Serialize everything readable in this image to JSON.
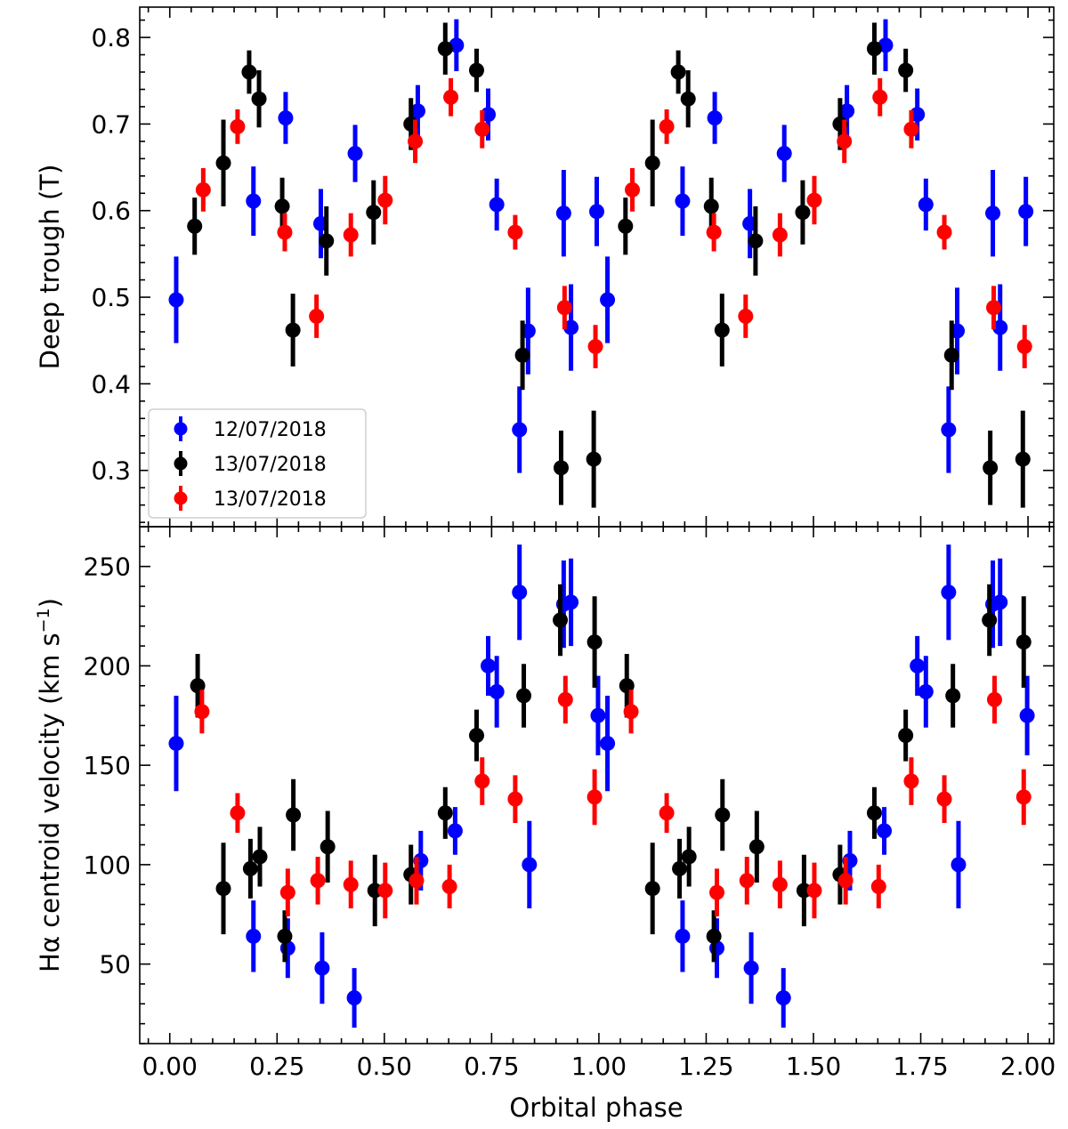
{
  "chart_data": {
    "type": "scatter",
    "shared_x": {
      "xlabel": "Orbital phase",
      "xlim": [
        -0.07,
        2.06
      ],
      "xticks": [
        "0.00",
        "0.25",
        "0.50",
        "0.75",
        "1.00",
        "1.25",
        "1.50",
        "1.75",
        "2.00"
      ]
    },
    "legend": {
      "placement": "lower-left",
      "panel": "top"
    },
    "series_styles": [
      {
        "name": "12/07/2018",
        "color": "#0000ff"
      },
      {
        "name": "13/07/2018",
        "color": "#000000"
      },
      {
        "name": "13/07/2018",
        "color": "#ff0000"
      }
    ],
    "panels": [
      {
        "ylabel": "Deep trough (T)",
        "ylim": [
          0.235,
          0.835
        ],
        "yticks": [
          "0.3",
          "0.4",
          "0.5",
          "0.6",
          "0.7",
          "0.8"
        ],
        "series": [
          {
            "points": [
              [
                0.015,
                0.497,
                0.05
              ],
              [
                0.195,
                0.611,
                0.04
              ],
              [
                0.27,
                0.707,
                0.03
              ],
              [
                0.352,
                0.585,
                0.04
              ],
              [
                0.432,
                0.666,
                0.033
              ],
              [
                0.578,
                0.715,
                0.03
              ],
              [
                0.668,
                0.791,
                0.03
              ],
              [
                0.742,
                0.711,
                0.03
              ],
              [
                0.762,
                0.607,
                0.03
              ],
              [
                0.815,
                0.347,
                0.05
              ],
              [
                0.835,
                0.461,
                0.05
              ],
              [
                0.918,
                0.597,
                0.05
              ],
              [
                0.935,
                0.465,
                0.05
              ],
              [
                0.995,
                0.599,
                0.04
              ],
              [
                1.02,
                0.497,
                0.05
              ],
              [
                1.195,
                0.611,
                0.04
              ],
              [
                1.27,
                0.707,
                0.03
              ],
              [
                1.352,
                0.585,
                0.04
              ],
              [
                1.432,
                0.666,
                0.033
              ],
              [
                1.578,
                0.715,
                0.03
              ],
              [
                1.668,
                0.791,
                0.03
              ],
              [
                1.742,
                0.711,
                0.03
              ],
              [
                1.762,
                0.607,
                0.03
              ],
              [
                1.815,
                0.347,
                0.05
              ],
              [
                1.835,
                0.461,
                0.05
              ],
              [
                1.918,
                0.597,
                0.05
              ],
              [
                1.935,
                0.465,
                0.05
              ],
              [
                1.995,
                0.599,
                0.04
              ]
            ]
          },
          {
            "points": [
              [
                0.058,
                0.582,
                0.033
              ],
              [
                0.125,
                0.655,
                0.05
              ],
              [
                0.185,
                0.76,
                0.025
              ],
              [
                0.208,
                0.729,
                0.033
              ],
              [
                0.262,
                0.605,
                0.033
              ],
              [
                0.287,
                0.462,
                0.042
              ],
              [
                0.365,
                0.565,
                0.04
              ],
              [
                0.475,
                0.598,
                0.037
              ],
              [
                0.562,
                0.7,
                0.03
              ],
              [
                0.642,
                0.787,
                0.03
              ],
              [
                0.715,
                0.762,
                0.025
              ],
              [
                0.822,
                0.433,
                0.04
              ],
              [
                0.912,
                0.303,
                0.043
              ],
              [
                0.988,
                0.313,
                0.056
              ],
              [
                1.062,
                0.582,
                0.033
              ],
              [
                1.125,
                0.655,
                0.05
              ],
              [
                1.185,
                0.76,
                0.025
              ],
              [
                1.208,
                0.729,
                0.033
              ],
              [
                1.262,
                0.605,
                0.033
              ],
              [
                1.287,
                0.462,
                0.042
              ],
              [
                1.365,
                0.565,
                0.04
              ],
              [
                1.475,
                0.598,
                0.037
              ],
              [
                1.562,
                0.7,
                0.03
              ],
              [
                1.642,
                0.787,
                0.03
              ],
              [
                1.715,
                0.762,
                0.025
              ],
              [
                1.822,
                0.433,
                0.04
              ],
              [
                1.912,
                0.303,
                0.043
              ],
              [
                1.988,
                0.313,
                0.056
              ]
            ]
          },
          {
            "points": [
              [
                0.078,
                0.624,
                0.025
              ],
              [
                0.158,
                0.697,
                0.02
              ],
              [
                0.268,
                0.575,
                0.022
              ],
              [
                0.342,
                0.478,
                0.025
              ],
              [
                0.422,
                0.572,
                0.025
              ],
              [
                0.502,
                0.612,
                0.028
              ],
              [
                0.572,
                0.68,
                0.025
              ],
              [
                0.655,
                0.731,
                0.022
              ],
              [
                0.728,
                0.694,
                0.022
              ],
              [
                0.805,
                0.575,
                0.02
              ],
              [
                0.92,
                0.488,
                0.025
              ],
              [
                0.992,
                0.443,
                0.025
              ],
              [
                1.078,
                0.624,
                0.025
              ],
              [
                1.158,
                0.697,
                0.02
              ],
              [
                1.268,
                0.575,
                0.022
              ],
              [
                1.342,
                0.478,
                0.025
              ],
              [
                1.422,
                0.572,
                0.025
              ],
              [
                1.502,
                0.612,
                0.028
              ],
              [
                1.572,
                0.68,
                0.025
              ],
              [
                1.655,
                0.731,
                0.022
              ],
              [
                1.728,
                0.694,
                0.022
              ],
              [
                1.805,
                0.575,
                0.02
              ],
              [
                1.92,
                0.488,
                0.025
              ],
              [
                1.992,
                0.443,
                0.025
              ]
            ]
          }
        ]
      },
      {
        "ylabel": "Hα centroid velocity (km s",
        "ylabel_sup": "−1",
        "ylabel_end": ")",
        "ylim": [
          10,
          270
        ],
        "yticks": [
          "50",
          "100",
          "150",
          "200",
          "250"
        ],
        "series": [
          {
            "points": [
              [
                0.015,
                161,
                24
              ],
              [
                0.195,
                64,
                18
              ],
              [
                0.275,
                58,
                15
              ],
              [
                0.355,
                48,
                18
              ],
              [
                0.43,
                33,
                15
              ],
              [
                0.585,
                102,
                15
              ],
              [
                0.665,
                117,
                12
              ],
              [
                0.742,
                200,
                15
              ],
              [
                0.762,
                187,
                18
              ],
              [
                0.815,
                237,
                24
              ],
              [
                0.838,
                100,
                22
              ],
              [
                0.918,
                231,
                22
              ],
              [
                0.935,
                232,
                22
              ],
              [
                0.998,
                175,
                20
              ],
              [
                1.02,
                161,
                24
              ],
              [
                1.195,
                64,
                18
              ],
              [
                1.275,
                58,
                15
              ],
              [
                1.355,
                48,
                18
              ],
              [
                1.43,
                33,
                15
              ],
              [
                1.585,
                102,
                15
              ],
              [
                1.665,
                117,
                12
              ],
              [
                1.742,
                200,
                15
              ],
              [
                1.762,
                187,
                18
              ],
              [
                1.815,
                237,
                24
              ],
              [
                1.838,
                100,
                22
              ],
              [
                1.918,
                231,
                22
              ],
              [
                1.935,
                232,
                22
              ],
              [
                1.998,
                175,
                20
              ]
            ]
          },
          {
            "points": [
              [
                0.065,
                190,
                16
              ],
              [
                0.125,
                88,
                23
              ],
              [
                0.188,
                98,
                15
              ],
              [
                0.21,
                104,
                15
              ],
              [
                0.268,
                64,
                13
              ],
              [
                0.288,
                125,
                18
              ],
              [
                0.368,
                109,
                18
              ],
              [
                0.478,
                87,
                18
              ],
              [
                0.562,
                95,
                15
              ],
              [
                0.642,
                126,
                13
              ],
              [
                0.715,
                165,
                13
              ],
              [
                0.825,
                185,
                16
              ],
              [
                0.91,
                223,
                18
              ],
              [
                0.99,
                212,
                23
              ],
              [
                1.065,
                190,
                16
              ],
              [
                1.125,
                88,
                23
              ],
              [
                1.188,
                98,
                15
              ],
              [
                1.21,
                104,
                15
              ],
              [
                1.268,
                64,
                13
              ],
              [
                1.288,
                125,
                18
              ],
              [
                1.368,
                109,
                18
              ],
              [
                1.478,
                87,
                18
              ],
              [
                1.562,
                95,
                15
              ],
              [
                1.642,
                126,
                13
              ],
              [
                1.715,
                165,
                13
              ],
              [
                1.825,
                185,
                16
              ],
              [
                1.91,
                223,
                18
              ],
              [
                1.99,
                212,
                23
              ]
            ]
          },
          {
            "points": [
              [
                0.075,
                177,
                11
              ],
              [
                0.158,
                126,
                10
              ],
              [
                0.275,
                86,
                12
              ],
              [
                0.345,
                92,
                12
              ],
              [
                0.422,
                90,
                12
              ],
              [
                0.502,
                87,
                14
              ],
              [
                0.575,
                92,
                12
              ],
              [
                0.652,
                89,
                11
              ],
              [
                0.728,
                142,
                12
              ],
              [
                0.805,
                133,
                12
              ],
              [
                0.922,
                183,
                12
              ],
              [
                0.99,
                134,
                14
              ],
              [
                1.075,
                177,
                11
              ],
              [
                1.158,
                126,
                10
              ],
              [
                1.275,
                86,
                12
              ],
              [
                1.345,
                92,
                12
              ],
              [
                1.422,
                90,
                12
              ],
              [
                1.502,
                87,
                14
              ],
              [
                1.575,
                92,
                12
              ],
              [
                1.652,
                89,
                11
              ],
              [
                1.728,
                142,
                12
              ],
              [
                1.805,
                133,
                12
              ],
              [
                1.922,
                183,
                12
              ],
              [
                1.99,
                134,
                14
              ]
            ]
          }
        ]
      }
    ]
  }
}
